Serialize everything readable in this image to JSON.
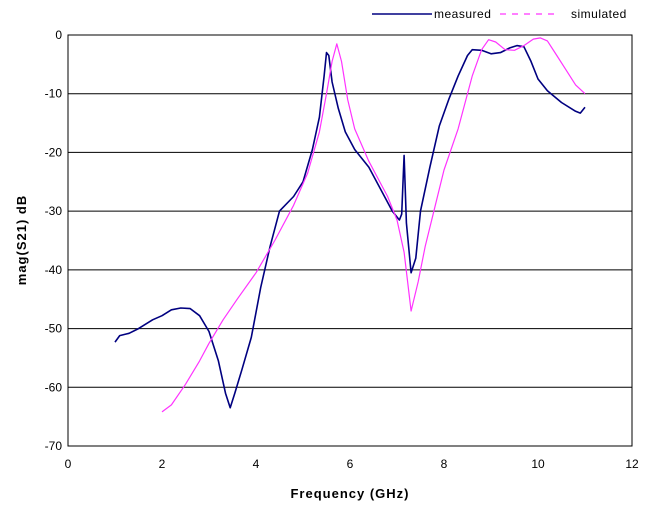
{
  "chart_data": {
    "type": "line",
    "title": "",
    "xlabel": "Frequency (GHz)",
    "ylabel": "mag(S21) dB",
    "xlim": [
      0,
      12
    ],
    "ylim": [
      -70,
      0
    ],
    "x_ticks": [
      0,
      2,
      4,
      6,
      8,
      10,
      12
    ],
    "y_ticks": [
      0,
      -10,
      -20,
      -30,
      -40,
      -50,
      -60,
      -70
    ],
    "grid": "horizontal",
    "legend_position": "top-right",
    "series": [
      {
        "name": "measured",
        "color": "#000080",
        "dash": "solid",
        "points": [
          [
            1.0,
            -52.3
          ],
          [
            1.1,
            -51.2
          ],
          [
            1.3,
            -50.8
          ],
          [
            1.5,
            -50.0
          ],
          [
            1.8,
            -48.5
          ],
          [
            2.0,
            -47.8
          ],
          [
            2.2,
            -46.8
          ],
          [
            2.4,
            -46.5
          ],
          [
            2.6,
            -46.6
          ],
          [
            2.8,
            -47.8
          ],
          [
            3.0,
            -50.5
          ],
          [
            3.2,
            -55.5
          ],
          [
            3.35,
            -61.0
          ],
          [
            3.45,
            -63.5
          ],
          [
            3.55,
            -61.0
          ],
          [
            3.7,
            -57.0
          ],
          [
            3.9,
            -51.5
          ],
          [
            4.1,
            -43.0
          ],
          [
            4.3,
            -36.0
          ],
          [
            4.5,
            -30.0
          ],
          [
            4.8,
            -27.5
          ],
          [
            5.0,
            -25.0
          ],
          [
            5.2,
            -19.5
          ],
          [
            5.35,
            -14.0
          ],
          [
            5.45,
            -7.0
          ],
          [
            5.5,
            -3.0
          ],
          [
            5.55,
            -3.5
          ],
          [
            5.62,
            -8.0
          ],
          [
            5.75,
            -12.5
          ],
          [
            5.9,
            -16.5
          ],
          [
            6.1,
            -19.5
          ],
          [
            6.4,
            -22.5
          ],
          [
            6.7,
            -27.0
          ],
          [
            6.9,
            -30.0
          ],
          [
            7.05,
            -31.5
          ],
          [
            7.1,
            -30.5
          ],
          [
            7.15,
            -20.5
          ],
          [
            7.2,
            -32.0
          ],
          [
            7.3,
            -40.5
          ],
          [
            7.4,
            -38.0
          ],
          [
            7.5,
            -30.0
          ],
          [
            7.7,
            -22.5
          ],
          [
            7.9,
            -15.5
          ],
          [
            8.1,
            -11.0
          ],
          [
            8.3,
            -7.0
          ],
          [
            8.5,
            -3.5
          ],
          [
            8.6,
            -2.5
          ],
          [
            8.8,
            -2.6
          ],
          [
            9.0,
            -3.2
          ],
          [
            9.2,
            -3.0
          ],
          [
            9.4,
            -2.2
          ],
          [
            9.55,
            -1.8
          ],
          [
            9.7,
            -2.0
          ],
          [
            9.85,
            -4.5
          ],
          [
            10.0,
            -7.5
          ],
          [
            10.2,
            -9.5
          ],
          [
            10.5,
            -11.5
          ],
          [
            10.8,
            -13.0
          ],
          [
            10.9,
            -13.3
          ],
          [
            11.0,
            -12.3
          ]
        ]
      },
      {
        "name": "simulated",
        "color": "#ff33ff",
        "dash": "dashed",
        "points": [
          [
            2.0,
            -64.2
          ],
          [
            2.2,
            -63.0
          ],
          [
            2.5,
            -59.5
          ],
          [
            2.8,
            -55.5
          ],
          [
            3.0,
            -52.5
          ],
          [
            3.3,
            -48.5
          ],
          [
            3.6,
            -45.0
          ],
          [
            4.0,
            -40.5
          ],
          [
            4.4,
            -35.0
          ],
          [
            4.8,
            -29.0
          ],
          [
            5.1,
            -23.5
          ],
          [
            5.35,
            -16.5
          ],
          [
            5.5,
            -10.0
          ],
          [
            5.62,
            -4.5
          ],
          [
            5.72,
            -1.5
          ],
          [
            5.82,
            -4.5
          ],
          [
            5.95,
            -11.0
          ],
          [
            6.1,
            -16.0
          ],
          [
            6.4,
            -21.5
          ],
          [
            6.8,
            -27.5
          ],
          [
            7.0,
            -31.5
          ],
          [
            7.15,
            -37.0
          ],
          [
            7.3,
            -47.0
          ],
          [
            7.45,
            -42.0
          ],
          [
            7.6,
            -36.0
          ],
          [
            7.8,
            -29.5
          ],
          [
            8.0,
            -23.0
          ],
          [
            8.3,
            -16.0
          ],
          [
            8.6,
            -7.0
          ],
          [
            8.8,
            -2.5
          ],
          [
            8.95,
            -0.8
          ],
          [
            9.1,
            -1.2
          ],
          [
            9.3,
            -2.5
          ],
          [
            9.5,
            -2.6
          ],
          [
            9.7,
            -1.8
          ],
          [
            9.9,
            -0.7
          ],
          [
            10.05,
            -0.5
          ],
          [
            10.2,
            -1.0
          ],
          [
            10.4,
            -3.5
          ],
          [
            10.6,
            -6.0
          ],
          [
            10.8,
            -8.5
          ],
          [
            11.0,
            -10.0
          ]
        ]
      }
    ]
  }
}
